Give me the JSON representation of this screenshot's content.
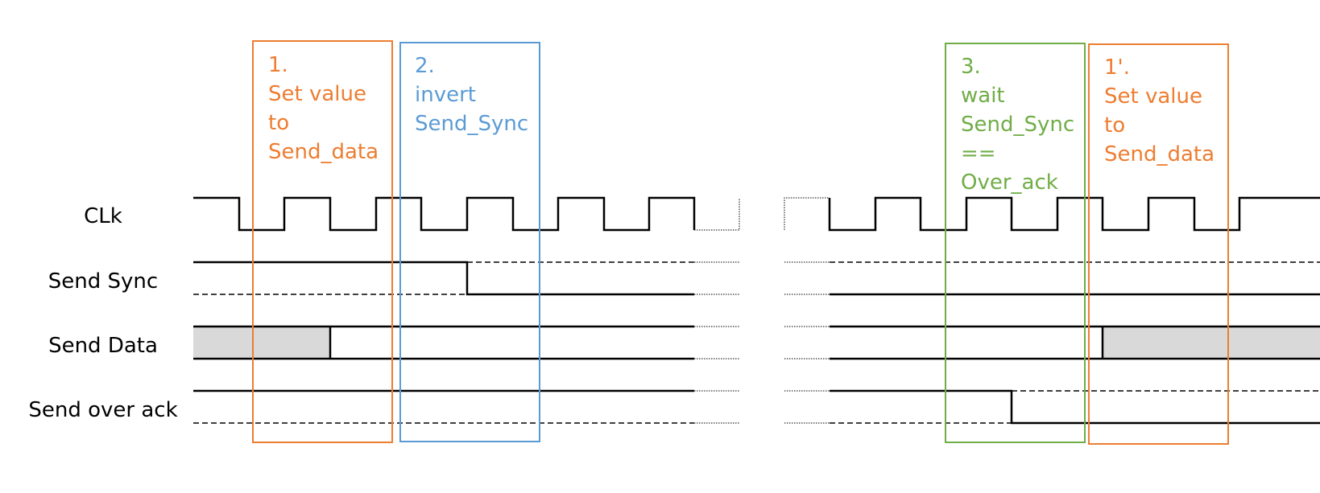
{
  "signals": {
    "clk": "CLk",
    "send_sync": "Send Sync",
    "send_data": "Send Data",
    "send_over_ack": "Send over ack"
  },
  "steps": [
    {
      "id": "step-1",
      "lines": [
        "1.",
        "Set value",
        "to",
        "Send_data"
      ],
      "color": "#ed7d31"
    },
    {
      "id": "step-2",
      "lines": [
        "2.",
        "invert",
        "Send_Sync"
      ],
      "color": "#5b9bd5"
    },
    {
      "id": "step-3",
      "lines": [
        "3.",
        "wait",
        "Send_Sync",
        "==",
        "Over_ack"
      ],
      "color": "#70ad47"
    },
    {
      "id": "step-1-prime",
      "lines": [
        "1'.",
        "Set value",
        "to",
        "Send_data"
      ],
      "color": "#ed7d31"
    }
  ]
}
